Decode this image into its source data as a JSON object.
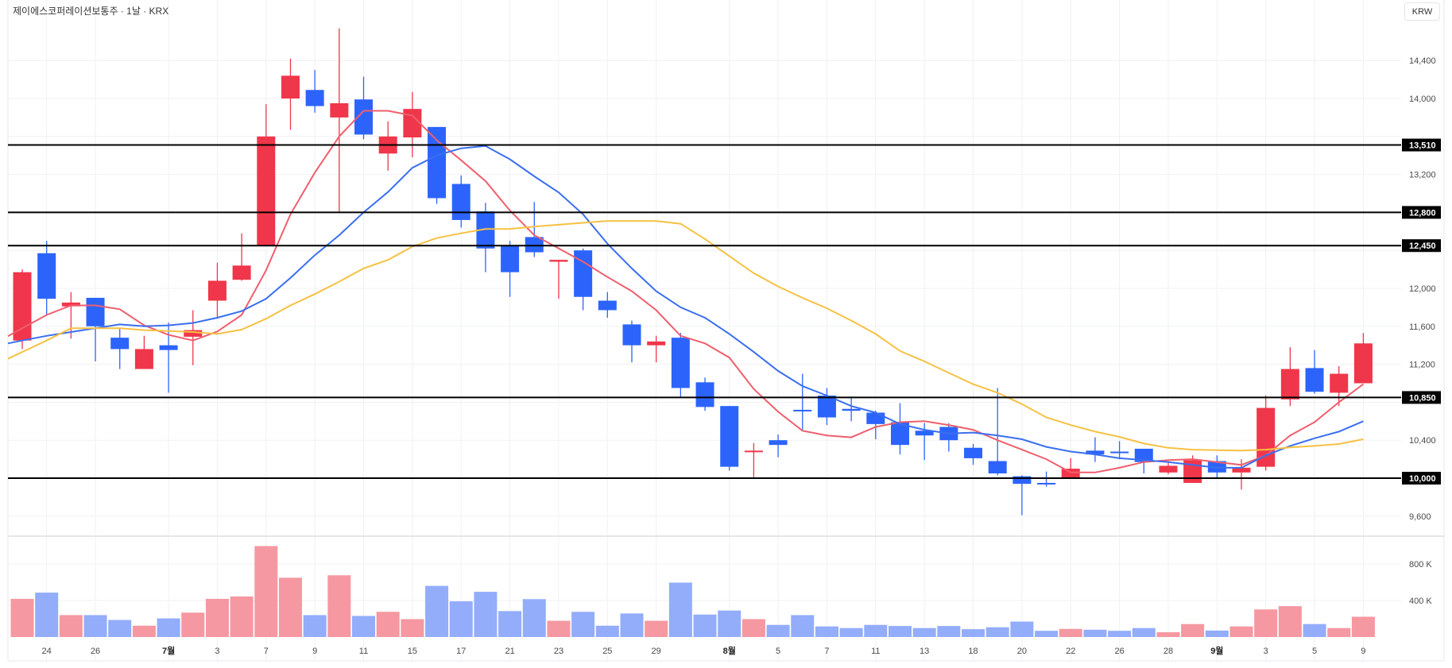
{
  "header": {
    "title": "제이에스코퍼레이션보통주 · 1날 · KRX",
    "currency_button": "KRW"
  },
  "colors": {
    "up": "#f0364a",
    "down": "#2c64fb",
    "vol_up": "#f598a1",
    "vol_down": "#93adfb",
    "ma5": "#ef5f6d",
    "ma10": "#3a6ff0",
    "ma20": "#f6c143",
    "level_line": "#000000",
    "grid": "#f0f1f4"
  },
  "chart_data": {
    "type": "candlestick",
    "title": "제이에스코퍼레이션보통주 · 1날 · KRX",
    "ylabel": "KRW",
    "ylim": [
      9450,
      14900
    ],
    "grid": true,
    "price_ticks": [
      {
        "value": 9600,
        "label": "9,600"
      },
      {
        "value": 10400,
        "label": "10,400"
      },
      {
        "value": 11200,
        "label": "11,200"
      },
      {
        "value": 11600,
        "label": "11,600"
      },
      {
        "value": 12000,
        "label": "12,000"
      },
      {
        "value": 13200,
        "label": "13,200"
      },
      {
        "value": 14000,
        "label": "14,000"
      },
      {
        "value": 14400,
        "label": "14,400"
      }
    ],
    "grid_values": [
      9600,
      10000,
      10400,
      10800,
      11200,
      11600,
      12000,
      12400,
      12800,
      13200,
      13600,
      14000,
      14400
    ],
    "levels": [
      {
        "value": 13510,
        "label": "13,510"
      },
      {
        "value": 12800,
        "label": "12,800"
      },
      {
        "value": 12450,
        "label": "12,450"
      },
      {
        "value": 10850,
        "label": "10,850"
      },
      {
        "value": 10000,
        "label": "10,000"
      }
    ],
    "volume_ticks": [
      {
        "value": 400,
        "label": "400 K"
      },
      {
        "value": 800,
        "label": "800 K"
      }
    ],
    "x_labels": [
      {
        "i": 1,
        "text": "24"
      },
      {
        "i": 3,
        "text": "26"
      },
      {
        "i": 6,
        "text": "7월",
        "bold": true
      },
      {
        "i": 8,
        "text": "3"
      },
      {
        "i": 10,
        "text": "7"
      },
      {
        "i": 12,
        "text": "9"
      },
      {
        "i": 14,
        "text": "11"
      },
      {
        "i": 16,
        "text": "15"
      },
      {
        "i": 18,
        "text": "17"
      },
      {
        "i": 20,
        "text": "21"
      },
      {
        "i": 22,
        "text": "23"
      },
      {
        "i": 24,
        "text": "25"
      },
      {
        "i": 26,
        "text": "29"
      },
      {
        "i": 29,
        "text": "8월",
        "bold": true
      },
      {
        "i": 31,
        "text": "5"
      },
      {
        "i": 33,
        "text": "7"
      },
      {
        "i": 35,
        "text": "11"
      },
      {
        "i": 37,
        "text": "13"
      },
      {
        "i": 39,
        "text": "18"
      },
      {
        "i": 41,
        "text": "20"
      },
      {
        "i": 43,
        "text": "22"
      },
      {
        "i": 45,
        "text": "26"
      },
      {
        "i": 47,
        "text": "28"
      },
      {
        "i": 49,
        "text": "9월",
        "bold": true
      },
      {
        "i": 51,
        "text": "3"
      },
      {
        "i": 53,
        "text": "5"
      },
      {
        "i": 55,
        "text": "9"
      }
    ],
    "candle_fields": [
      "open",
      "high",
      "low",
      "close",
      "volume_k"
    ],
    "candles": [
      [
        11450,
        12200,
        11360,
        12170,
        418
      ],
      [
        12370,
        12500,
        11720,
        11890,
        486
      ],
      [
        11810,
        11960,
        11470,
        11850,
        240
      ],
      [
        11900,
        11900,
        11230,
        11600,
        240
      ],
      [
        11480,
        11580,
        11150,
        11360,
        187
      ],
      [
        11150,
        11500,
        11150,
        11360,
        124
      ],
      [
        11400,
        11640,
        10900,
        11350,
        204
      ],
      [
        11490,
        11770,
        11190,
        11560,
        267
      ],
      [
        11870,
        12270,
        11680,
        12080,
        418
      ],
      [
        12090,
        12580,
        12080,
        12240,
        444
      ],
      [
        12450,
        13940,
        12450,
        13600,
        996
      ],
      [
        14000,
        14420,
        13670,
        14240,
        649
      ],
      [
        14090,
        14300,
        13850,
        13920,
        240
      ],
      [
        13800,
        14740,
        12800,
        13950,
        676
      ],
      [
        13990,
        14230,
        13570,
        13620,
        231
      ],
      [
        13420,
        13760,
        13240,
        13600,
        276
      ],
      [
        13590,
        14070,
        13380,
        13890,
        196
      ],
      [
        13700,
        13700,
        12890,
        12950,
        560
      ],
      [
        13100,
        13190,
        12640,
        12720,
        391
      ],
      [
        12810,
        12900,
        12170,
        12420,
        495
      ],
      [
        12450,
        12500,
        11910,
        12170,
        284
      ],
      [
        12540,
        12910,
        12330,
        12380,
        415
      ],
      [
        12280,
        12300,
        11890,
        12300,
        178
      ],
      [
        12400,
        12420,
        11770,
        11910,
        276
      ],
      [
        11870,
        11960,
        11690,
        11770,
        124
      ],
      [
        11620,
        11660,
        11220,
        11400,
        258
      ],
      [
        11400,
        11500,
        11220,
        11440,
        178
      ],
      [
        11480,
        11530,
        10850,
        10950,
        596
      ],
      [
        11010,
        11060,
        10710,
        10750,
        246
      ],
      [
        10760,
        10760,
        10080,
        10120,
        290
      ],
      [
        10280,
        10370,
        10000,
        10290,
        196
      ],
      [
        10400,
        10460,
        10220,
        10350,
        133
      ],
      [
        10720,
        11100,
        10500,
        10710,
        240
      ],
      [
        10870,
        10950,
        10560,
        10640,
        116
      ],
      [
        10730,
        10860,
        10600,
        10710,
        98
      ],
      [
        10690,
        10710,
        10410,
        10570,
        133
      ],
      [
        10590,
        10790,
        10250,
        10350,
        121
      ],
      [
        10500,
        10580,
        10190,
        10450,
        98
      ],
      [
        10540,
        10580,
        10280,
        10400,
        121
      ],
      [
        10320,
        10360,
        10140,
        10210,
        86
      ],
      [
        10180,
        10950,
        10030,
        10050,
        107
      ],
      [
        10020,
        10030,
        9610,
        9940,
        169
      ],
      [
        9950,
        10070,
        9910,
        9940,
        68
      ],
      [
        10000,
        10210,
        10000,
        10100,
        89
      ],
      [
        10290,
        10430,
        10170,
        10250,
        80
      ],
      [
        10280,
        10390,
        10200,
        10270,
        68
      ],
      [
        10310,
        10310,
        10050,
        10170,
        98
      ],
      [
        10060,
        10180,
        10040,
        10130,
        53
      ],
      [
        9950,
        10240,
        9950,
        10190,
        142
      ],
      [
        10180,
        10240,
        10000,
        10060,
        71
      ],
      [
        10060,
        10200,
        9880,
        10110,
        116
      ],
      [
        10120,
        10870,
        10080,
        10740,
        302
      ],
      [
        10830,
        11380,
        10760,
        11150,
        338
      ],
      [
        11160,
        11350,
        10890,
        10910,
        142
      ],
      [
        10900,
        11180,
        10760,
        11100,
        98
      ],
      [
        11000,
        11530,
        11000,
        11420,
        222
      ]
    ],
    "up_flags_note": "",
    "moving_averages": [
      {
        "name": "MA5",
        "color_key": "ma5",
        "values": [
          11580,
          11720,
          11820,
          11820,
          11780,
          11610,
          11510,
          11450,
          11545,
          11720,
          12190,
          12780,
          13220,
          13600,
          13870,
          13870,
          13820,
          13560,
          13350,
          13130,
          12820,
          12560,
          12420,
          12280,
          12120,
          11970,
          11770,
          11500,
          11420,
          11270,
          10940,
          10700,
          10500,
          10450,
          10430,
          10540,
          10590,
          10600,
          10560,
          10510,
          10400,
          10300,
          10200,
          10060,
          10060,
          10110,
          10170,
          10190,
          10200,
          10170,
          10140,
          10240,
          10450,
          10590,
          10800,
          10990
        ]
      },
      {
        "name": "MA10",
        "color_key": "ma10",
        "values": [
          11450,
          11500,
          11540,
          11580,
          11620,
          11600,
          11610,
          11635,
          11690,
          11760,
          11890,
          12110,
          12350,
          12560,
          12800,
          13015,
          13270,
          13400,
          13475,
          13500,
          13360,
          13180,
          13010,
          12780,
          12470,
          12210,
          11970,
          11800,
          11690,
          11520,
          11330,
          11130,
          10970,
          10870,
          10760,
          10690,
          10570,
          10510,
          10470,
          10480,
          10450,
          10410,
          10330,
          10280,
          10250,
          10210,
          10190,
          10170,
          10140,
          10110,
          10110,
          10240,
          10340,
          10420,
          10490,
          10600
        ]
      },
      {
        "name": "MA20",
        "color_key": "ma20",
        "values": [
          11330,
          11450,
          11580,
          11580,
          11580,
          11560,
          11550,
          11540,
          11520,
          11565,
          11680,
          11820,
          11940,
          12070,
          12210,
          12300,
          12440,
          12530,
          12580,
          12625,
          12625,
          12650,
          12670,
          12690,
          12710,
          12710,
          12710,
          12680,
          12520,
          12340,
          12160,
          12020,
          11900,
          11790,
          11660,
          11520,
          11340,
          11230,
          11110,
          10990,
          10900,
          10780,
          10640,
          10560,
          10490,
          10435,
          10365,
          10320,
          10300,
          10295,
          10290,
          10300,
          10325,
          10340,
          10360,
          10410
        ]
      }
    ]
  }
}
